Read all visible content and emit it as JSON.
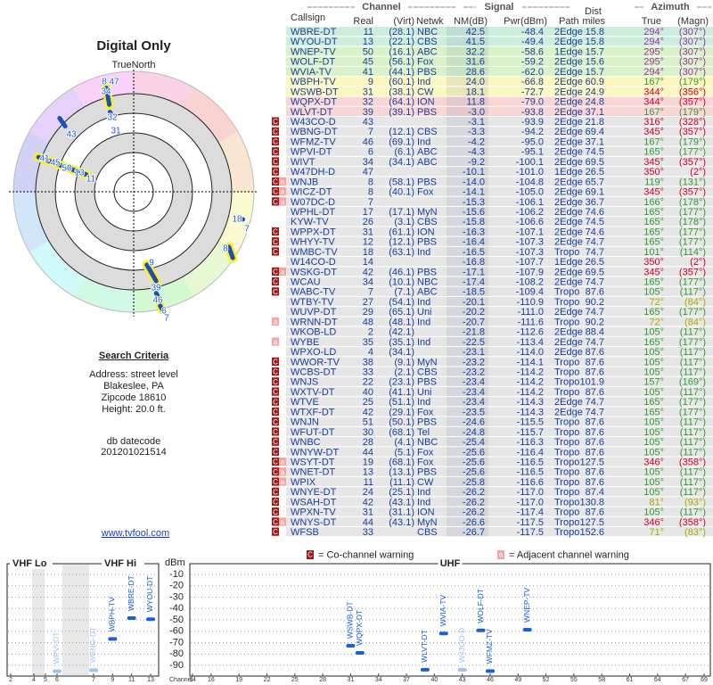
{
  "header": {
    "title": "Digital Only",
    "north": "TrueNorth",
    "link": "www.tvfool.com"
  },
  "criteria": {
    "title": "Search Criteria",
    "lines": [
      "Address: street level",
      "Blakeslee, PA",
      "Zipcode 18610",
      "Height: 20.0 ft."
    ],
    "datecode_label": "db datecode",
    "datecode": "201201021514"
  },
  "polar": {
    "labels": [
      "8",
      "47",
      "34",
      "32",
      "31",
      "43",
      "41",
      "45",
      "50",
      "13",
      "11",
      "18",
      "7",
      "8",
      "9",
      "39",
      "46",
      "6",
      "7"
    ]
  },
  "table": {
    "groups": [
      "Channel",
      "Signal",
      "Azimuth"
    ],
    "headers": [
      "Callsign",
      "Real",
      "(Virt)",
      "Netwk",
      "NM(dB)",
      "Pwr(dBm)",
      "Path",
      "Dist",
      "miles",
      "True",
      "(Magn)"
    ],
    "rows": [
      [
        "WBRE-DT",
        "11",
        "(28.1)",
        "NBC",
        "42.5",
        "-48.4",
        "2Edge",
        "15.8",
        "294°",
        "(307°)"
      ],
      [
        "WYOU-DT",
        "13",
        "(22.1)",
        "CBS",
        "41.5",
        "-49.4",
        "2Edge",
        "15.8",
        "294°",
        "(307°)"
      ],
      [
        "WNEP-TV",
        "50",
        "(16.1)",
        "ABC",
        "32.2",
        "-58.6",
        "1Edge",
        "15.7",
        "295°",
        "(307°)"
      ],
      [
        "WOLF-DT",
        "45",
        "(56.1)",
        "Fox",
        "31.6",
        "-59.2",
        "2Edge",
        "15.6",
        "295°",
        "(307°)"
      ],
      [
        "WVIA-TV",
        "41",
        "(44.1)",
        "PBS",
        "28.6",
        "-62.0",
        "2Edge",
        "15.7",
        "294°",
        "(307°)"
      ],
      [
        "WBPH-TV",
        "9",
        "(60.1)",
        "Ind",
        "24.0",
        "-66.8",
        "2Edge",
        "60.9",
        "167°",
        "(179°)"
      ],
      [
        "WSWB-DT",
        "31",
        "(38.1)",
        "CW",
        "18.1",
        "-72.7",
        "2Edge",
        "24.9",
        "344°",
        "(356°)"
      ],
      [
        "WQPX-DT",
        "32",
        "(64.1)",
        "ION",
        "11.8",
        "-79.0",
        "2Edge",
        "24.8",
        "344°",
        "(357°)"
      ],
      [
        "WLVT-DT",
        "39",
        "(39.1)",
        "PBS",
        "-3.0",
        "-93.8",
        "2Edge",
        "37.1",
        "167°",
        "(179°)"
      ],
      [
        "W43CO-D",
        "43",
        null,
        null,
        "-3.1",
        "-93.9",
        "2Edge",
        "21.8",
        "316°",
        "(328°)"
      ],
      [
        "WBNG-DT",
        "7",
        "(12.1)",
        "CBS",
        "-3.3",
        "-94.2",
        "2Edge",
        "69.4",
        "345°",
        "(357°)"
      ],
      [
        "WFMZ-TV",
        "46",
        "(69.1)",
        "Ind",
        "-4.2",
        "-95.0",
        "2Edge",
        "37.1",
        "167°",
        "(179°)"
      ],
      [
        "WPVI-DT",
        "6",
        "(6.1)",
        "ABC",
        "-4.3",
        "-95.1",
        "2Edge",
        "74.5",
        "165°",
        "(177°)"
      ],
      [
        "WIVT",
        "34",
        "(34.1)",
        "ABC",
        "-9.2",
        "-100.1",
        "2Edge",
        "69.5",
        "345°",
        "(357°)"
      ],
      [
        "W47DH-D",
        "47",
        null,
        null,
        "-10.1",
        "-101.0",
        "1Edge",
        "26.5",
        "350°",
        "(2°)"
      ],
      [
        "WNJB",
        "8",
        "(58.1)",
        "PBS",
        "-14.0",
        "-104.8",
        "2Edge",
        "65.7",
        "119°",
        "(131°)"
      ],
      [
        "WICZ-DT",
        "8",
        "(40.1)",
        "Fox",
        "-14.1",
        "-105.0",
        "2Edge",
        "69.1",
        "345°",
        "(357°)"
      ],
      [
        "W07DC-D",
        "7",
        null,
        null,
        "-15.3",
        "-106.1",
        "2Edge",
        "36.7",
        "166°",
        "(178°)"
      ],
      [
        "WPHL-DT",
        "17",
        "(17.1)",
        "MyN",
        "-15.6",
        "-106.2",
        "2Edge",
        "74.6",
        "165°",
        "(177°)"
      ],
      [
        "KYW-TV",
        "26",
        "(3.1)",
        "CBS",
        "-15.8",
        "-106.6",
        "2Edge",
        "74.5",
        "165°",
        "(178°)"
      ],
      [
        "WPPX-DT",
        "31",
        "(61.1)",
        "ION",
        "-16.3",
        "-107.1",
        "2Edge",
        "74.6",
        "165°",
        "(177°)"
      ],
      [
        "WHYY-TV",
        "12",
        "(12.1)",
        "PBS",
        "-16.4",
        "-107.3",
        "2Edge",
        "74.7",
        "165°",
        "(177°)"
      ],
      [
        "WMBC-TV",
        "18",
        "(63.1)",
        "Ind",
        "-16.5",
        "-107.3",
        "Tropo",
        "74.7",
        "101°",
        "(114°)"
      ],
      [
        "W14CO-D",
        "14",
        null,
        null,
        "-16.8",
        "-107.7",
        "1Edge",
        "26.5",
        "350°",
        "(2°)"
      ],
      [
        "WSKG-DT",
        "42",
        "(46.1)",
        "PBS",
        "-17.1",
        "-107.9",
        "2Edge",
        "69.5",
        "345°",
        "(357°)"
      ],
      [
        "WCAU",
        "34",
        "(10.1)",
        "NBC",
        "-17.4",
        "-108.2",
        "2Edge",
        "74.7",
        "165°",
        "(177°)"
      ],
      [
        "WABC-TV",
        "7",
        "(7.1)",
        "ABC",
        "-18.5",
        "-109.4",
        "Tropo",
        "87.6",
        "105°",
        "(117°)"
      ],
      [
        "WTBY-TV",
        "27",
        "(54.1)",
        "Ind",
        "-20.1",
        "-110.9",
        "Tropo",
        "90.2",
        "72°",
        "(84°)"
      ],
      [
        "WUVP-DT",
        "29",
        "(65.1)",
        "Uni",
        "-20.2",
        "-111.0",
        "2Edge",
        "74.7",
        "165°",
        "(177°)"
      ],
      [
        "WRNN-DT",
        "48",
        "(48.1)",
        "Ind",
        "-20.7",
        "-111.6",
        "Tropo",
        "90.2",
        "72°",
        "(84°)"
      ],
      [
        "WKOB-LD",
        "2",
        "(42.1)",
        null,
        "-21.8",
        "-112.6",
        "2Edge",
        "88.4",
        "105°",
        "(117°)"
      ],
      [
        "WYBE",
        "35",
        "(35.1)",
        "Ind",
        "-22.5",
        "-113.4",
        "2Edge",
        "74.7",
        "165°",
        "(177°)"
      ],
      [
        "WPXO-LD",
        "4",
        "(34.1)",
        null,
        "-23.1",
        "-114.0",
        "2Edge",
        "87.6",
        "105°",
        "(117°)"
      ],
      [
        "WWOR-TV",
        "38",
        "(9.1)",
        "MyN",
        "-23.2",
        "-114.1",
        "Tropo",
        "87.6",
        "105°",
        "(117°)"
      ],
      [
        "WCBS-DT",
        "33",
        "(2.1)",
        "CBS",
        "-23.2",
        "-114.2",
        "Tropo",
        "87.6",
        "105°",
        "(117°)"
      ],
      [
        "WNJS",
        "22",
        "(23.1)",
        "PBS",
        "-23.4",
        "-114.2",
        "Tropo",
        "101.9",
        "157°",
        "(169°)"
      ],
      [
        "WXTV-DT",
        "40",
        "(41.1)",
        "Uni",
        "-23.4",
        "-114.2",
        "Tropo",
        "87.6",
        "105°",
        "(117°)"
      ],
      [
        "WTVE",
        "25",
        "(51.1)",
        "Ind",
        "-23.4",
        "-114.3",
        "2Edge",
        "74.7",
        "165°",
        "(177°)"
      ],
      [
        "WTXF-DT",
        "42",
        "(29.1)",
        "Fox",
        "-23.5",
        "-114.3",
        "2Edge",
        "74.7",
        "165°",
        "(177°)"
      ],
      [
        "WNJN",
        "51",
        "(50.1)",
        "PBS",
        "-24.6",
        "-115.5",
        "Tropo",
        "87.6",
        "105°",
        "(117°)"
      ],
      [
        "WFUT-DT",
        "30",
        "(68.1)",
        "Tel",
        "-24.8",
        "-115.7",
        "Tropo",
        "87.6",
        "105°",
        "(117°)"
      ],
      [
        "WNBC",
        "28",
        "(4.1)",
        "NBC",
        "-25.4",
        "-116.3",
        "Tropo",
        "87.6",
        "105°",
        "(117°)"
      ],
      [
        "WNYW-DT",
        "44",
        "(5.1)",
        "Fox",
        "-25.6",
        "-116.4",
        "Tropo",
        "87.6",
        "105°",
        "(117°)"
      ],
      [
        "WSYT-DT",
        "19",
        "(68.1)",
        "Fox",
        "-25.6",
        "-116.5",
        "Tropo",
        "127.5",
        "346°",
        "(358°)"
      ],
      [
        "WNET-DT",
        "13",
        "(13.1)",
        "PBS",
        "-25.6",
        "-116.5",
        "Tropo",
        "87.6",
        "105°",
        "(117°)"
      ],
      [
        "WPIX",
        "11",
        "(11.1)",
        "CW",
        "-25.8",
        "-116.6",
        "Tropo",
        "87.6",
        "105°",
        "(117°)"
      ],
      [
        "WNYE-DT",
        "24",
        "(25.1)",
        "Ind",
        "-26.2",
        "-117.0",
        "Tropo",
        "87.4",
        "105°",
        "(117°)"
      ],
      [
        "WSAH-DT",
        "42",
        "(43.1)",
        "Ind",
        "-26.2",
        "-117.0",
        "Tropo",
        "130.8",
        "81°",
        "(93°)"
      ],
      [
        "WPXN-TV",
        "31",
        "(31.1)",
        "ION",
        "-26.2",
        "-117.4",
        "Tropo",
        "87.6",
        "105°",
        "(117°)"
      ],
      [
        "WNYS-DT",
        "44",
        "(43.1)",
        "MyN",
        "-26.6",
        "-117.5",
        "Tropo",
        "127.5",
        "346°",
        "(358°)"
      ],
      [
        "WFSB",
        "33",
        null,
        "CBS",
        "-26.7",
        "-117.5",
        "Tropo",
        "152.6",
        "71°",
        "(83°)"
      ]
    ],
    "row_colors": [
      "#cdeedd",
      "#cdeedd",
      "#d9f2c9",
      "#d9f2c9",
      "#d9f2c9",
      "#fbf7c0",
      "#fbf7c0",
      "#f8d6d6",
      "#f8d6d6",
      "#e6e6e6",
      "#e6e6e6",
      "#e6e6e6",
      "#e6e6e6",
      "#e6e6e6",
      "#e6e6e6",
      "#e6e6e6",
      "#e6e6e6",
      "#e6e6e6",
      "#e6e6e6",
      "#e6e6e6",
      "#e6e6e6",
      "#e6e6e6",
      "#e6e6e6",
      "#e6e6e6",
      "#e6e6e6",
      "#e6e6e6",
      "#e6e6e6",
      "#e6e6e6",
      "#e6e6e6",
      "#e6e6e6",
      "#e6e6e6",
      "#e6e6e6",
      "#e6e6e6",
      "#e6e6e6",
      "#e6e6e6",
      "#e6e6e6",
      "#e6e6e6",
      "#e6e6e6",
      "#e6e6e6",
      "#e6e6e6",
      "#e6e6e6",
      "#e6e6e6",
      "#e6e6e6",
      "#e6e6e6",
      "#e6e6e6",
      "#e6e6e6",
      "#e6e6e6",
      "#e6e6e6",
      "#e6e6e6",
      "#e6e6e6",
      "#e6e6e6"
    ],
    "azimuth_colors": [
      "#993399",
      "#993399",
      "#993399",
      "#993399",
      "#993399",
      "#339933",
      "#cc0033",
      "#cc0033",
      "#339933",
      "#cc0033",
      "#cc0033",
      "#339933",
      "#339933",
      "#cc0033",
      "#cc0033",
      "#339933",
      "#cc0033",
      "#339933",
      "#339933",
      "#339933",
      "#339933",
      "#339933",
      "#339933",
      "#cc0033",
      "#cc0033",
      "#339933",
      "#339933",
      "#aaaa00",
      "#339933",
      "#aaaa00",
      "#339933",
      "#339933",
      "#339933",
      "#339933",
      "#339933",
      "#339933",
      "#339933",
      "#339933",
      "#339933",
      "#339933",
      "#339933",
      "#339933",
      "#339933",
      "#cc0033",
      "#339933",
      "#339933",
      "#339933",
      "#aaaa00",
      "#339933",
      "#cc0033",
      "#aaaa00"
    ],
    "warnings": [
      [],
      [],
      [],
      [],
      [],
      [],
      [],
      [],
      [],
      [
        "C"
      ],
      [
        "C"
      ],
      [
        "C"
      ],
      [
        "C"
      ],
      [
        "C"
      ],
      [
        "C"
      ],
      [
        "C",
        "a"
      ],
      [
        "C",
        "a"
      ],
      [
        "C",
        "a"
      ],
      [],
      [],
      [
        "C"
      ],
      [
        "C"
      ],
      [
        "C"
      ],
      [],
      [
        "C",
        "a"
      ],
      [
        "C"
      ],
      [
        "C"
      ],
      [],
      [],
      [
        "a"
      ],
      [],
      [
        "a"
      ],
      [],
      [
        "C"
      ],
      [
        "C"
      ],
      [
        "C"
      ],
      [
        "C"
      ],
      [
        "C"
      ],
      [
        "C"
      ],
      [
        "C"
      ],
      [
        "C"
      ],
      [
        "C"
      ],
      [
        "C"
      ],
      [
        "C",
        "a"
      ],
      [
        "C",
        "a"
      ],
      [
        "C",
        "a"
      ],
      [
        "C"
      ],
      [
        "C"
      ],
      [
        "C"
      ],
      [
        "C",
        "a"
      ],
      [
        "C"
      ]
    ]
  },
  "legend": {
    "co_channel_mark": "C",
    "co_channel": "= Co-channel warning",
    "adjacent_mark": "a",
    "adjacent": "= Adjacent channel warning"
  },
  "chart_data": {
    "type": "bar",
    "ylabel": "dBm",
    "xlabel": "Channel",
    "ylim": [
      -100,
      0
    ],
    "yticks": [
      -10,
      -20,
      -30,
      -40,
      -50,
      -60,
      -70,
      -80,
      -90
    ],
    "grid": true,
    "panels": [
      {
        "title": "VHF Lo",
        "xlim": [
          2,
          6
        ],
        "xticks": [
          2,
          4,
          5,
          6
        ]
      },
      {
        "title": "VHF Hi",
        "xlim": [
          7,
          13
        ],
        "xticks": [
          7,
          9,
          11,
          13
        ]
      },
      {
        "title": "UHF",
        "xlim": [
          14,
          69
        ],
        "xticks": [
          14,
          16,
          19,
          22,
          25,
          28,
          31,
          34,
          37,
          40,
          43,
          46,
          49,
          52,
          55,
          58,
          61,
          64,
          67,
          69
        ]
      }
    ],
    "categories": [
      "WPVI-DT",
      "WBNG-DT",
      "WBPH-TV",
      "WBRE-DT",
      "WYOU-DT",
      "WSWB-DT",
      "WQPX-DT",
      "WLVT-DT",
      "WVIA-TV",
      "W43CO-D",
      "WOLF-DT",
      "WFMZ-TV",
      "WNEP-TV"
    ],
    "x": [
      6,
      7,
      9,
      11,
      13,
      31,
      32,
      39,
      41,
      43,
      45,
      46,
      50
    ],
    "values": [
      -95.1,
      -94.2,
      -66.8,
      -48.4,
      -49.4,
      -72.7,
      -79.0,
      -93.8,
      -62.0,
      -93.9,
      -59.2,
      -95.0,
      -58.6
    ],
    "colors": [
      "#9ec3ee",
      "#9ec3ee",
      "#1a5ed8",
      "#1a5ed8",
      "#1a5ed8",
      "#1a5ed8",
      "#1a5ed8",
      "#1a5ed8",
      "#1a5ed8",
      "#9ec3ee",
      "#1a5ed8",
      "#1a5ed8",
      "#1a5ed8"
    ]
  }
}
